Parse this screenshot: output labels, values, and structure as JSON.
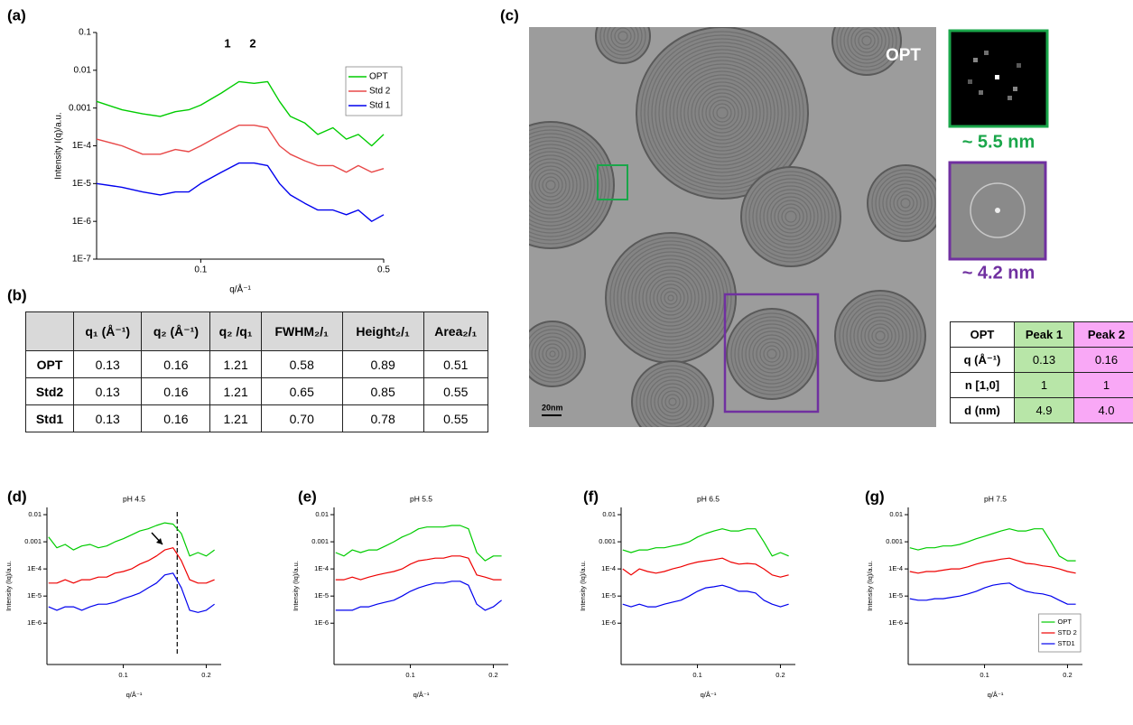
{
  "panel_labels": [
    "(a)",
    "(b)",
    "(c)",
    "(d)",
    "(e)",
    "(f)",
    "(g)"
  ],
  "chart_data": [
    {
      "type": "line",
      "xscale": "log",
      "yscale": "log",
      "xlabel": "q/Å⁻¹",
      "ylabel": "Intensity I(q)/a.u.",
      "xlim": [
        0.04,
        0.5
      ],
      "ylim": [
        1e-07,
        0.1
      ],
      "xticks": [
        0.1,
        0.5
      ],
      "yticks": [
        {
          "value": 1e-07,
          "label": "1E-7"
        },
        {
          "value": 1e-06,
          "label": "1E-6"
        },
        {
          "value": 1e-05,
          "label": "1E-5"
        },
        {
          "value": 0.0001,
          "label": "1E-4"
        },
        0.001,
        0.01,
        0.1
      ],
      "legend": "upper-right",
      "annotations": [
        "1",
        "2"
      ],
      "x": [
        0.04,
        0.05,
        0.06,
        0.07,
        0.08,
        0.09,
        0.1,
        0.12,
        0.14,
        0.16,
        0.18,
        0.2,
        0.22,
        0.25,
        0.28,
        0.32,
        0.36,
        0.4,
        0.45,
        0.5
      ],
      "series": [
        {
          "name": "OPT",
          "color": "#00cc00",
          "values": [
            0.0015,
            0.0009,
            0.0007,
            0.0006,
            0.0008,
            0.0009,
            0.0012,
            0.0025,
            0.005,
            0.0045,
            0.005,
            0.0015,
            0.0006,
            0.0004,
            0.0002,
            0.0003,
            0.00015,
            0.0002,
            0.0001,
            0.0002
          ]
        },
        {
          "name": "Std 2",
          "color": "#e84848",
          "values": [
            0.00015,
            0.0001,
            6e-05,
            6e-05,
            8e-05,
            7e-05,
            0.0001,
            0.0002,
            0.00035,
            0.00035,
            0.0003,
            0.0001,
            6e-05,
            4e-05,
            3e-05,
            3e-05,
            2e-05,
            3e-05,
            2e-05,
            2.5e-05
          ]
        },
        {
          "name": "Std 1",
          "color": "#0000ee",
          "values": [
            1e-05,
            8e-06,
            6e-06,
            5e-06,
            6e-06,
            6e-06,
            1e-05,
            2e-05,
            3.5e-05,
            3.5e-05,
            3e-05,
            1e-05,
            5e-06,
            3e-06,
            2e-06,
            2e-06,
            1.5e-06,
            2e-06,
            1e-06,
            1.5e-06
          ]
        }
      ]
    },
    {
      "type": "line",
      "yscale": "log",
      "title": "pH 4.5",
      "xlabel": "q/Å⁻¹",
      "ylabel": "Intensity (Iq)/a.u.",
      "xlim": [
        0.008,
        0.218
      ],
      "ylim": [
        3e-08,
        0.0185
      ],
      "xticks": [
        0.1,
        0.2
      ],
      "yticks": [
        {
          "value": 1e-06,
          "label": "1E-6"
        },
        {
          "value": 1e-05,
          "label": "1E-5"
        },
        {
          "value": 0.0001,
          "label": "1E-4"
        },
        0.001,
        0.01
      ],
      "reference_line_x": 0.165,
      "x": [
        0.01,
        0.02,
        0.03,
        0.04,
        0.05,
        0.06,
        0.07,
        0.08,
        0.09,
        0.1,
        0.11,
        0.12,
        0.13,
        0.14,
        0.15,
        0.16,
        0.17,
        0.18,
        0.19,
        0.2,
        0.21
      ],
      "series": [
        {
          "color": "#00cc00",
          "values": [
            0.0015,
            0.0006,
            0.0008,
            0.0005,
            0.0007,
            0.0008,
            0.0006,
            0.0007,
            0.001,
            0.0013,
            0.0018,
            0.0025,
            0.003,
            0.004,
            0.005,
            0.0045,
            0.002,
            0.0003,
            0.0004,
            0.0003,
            0.0005
          ]
        },
        {
          "color": "#ee0000",
          "values": [
            3e-05,
            3e-05,
            4e-05,
            3e-05,
            4e-05,
            4e-05,
            5e-05,
            5e-05,
            7e-05,
            8e-05,
            0.0001,
            0.00015,
            0.0002,
            0.0003,
            0.0005,
            0.0006,
            0.0002,
            4e-05,
            3e-05,
            3e-05,
            4e-05
          ]
        },
        {
          "color": "#0000ee",
          "values": [
            4e-06,
            3e-06,
            4e-06,
            4e-06,
            3e-06,
            4e-06,
            5e-06,
            5e-06,
            6e-06,
            8e-06,
            1e-05,
            1.3e-05,
            2e-05,
            3e-05,
            6e-05,
            7e-05,
            2e-05,
            3e-06,
            2.5e-06,
            3e-06,
            5e-06
          ]
        }
      ]
    },
    {
      "type": "line",
      "yscale": "log",
      "title": "pH 5.5",
      "xlabel": "q/Å⁻¹",
      "ylabel": "Intensity (Iq)/a.u.",
      "xlim": [
        0.008,
        0.218
      ],
      "ylim": [
        3e-08,
        0.0185
      ],
      "xticks": [
        0.1,
        0.2
      ],
      "yticks": [
        {
          "value": 1e-06,
          "label": "1E-6"
        },
        {
          "value": 1e-05,
          "label": "1E-5"
        },
        {
          "value": 0.0001,
          "label": "1E-4"
        },
        0.001,
        0.01
      ],
      "x": [
        0.01,
        0.02,
        0.03,
        0.04,
        0.05,
        0.06,
        0.07,
        0.08,
        0.09,
        0.1,
        0.11,
        0.12,
        0.13,
        0.14,
        0.15,
        0.16,
        0.17,
        0.18,
        0.19,
        0.2,
        0.21
      ],
      "series": [
        {
          "color": "#00cc00",
          "values": [
            0.0004,
            0.0003,
            0.0005,
            0.0004,
            0.0005,
            0.0005,
            0.0007,
            0.001,
            0.0015,
            0.002,
            0.003,
            0.0035,
            0.0035,
            0.0035,
            0.004,
            0.004,
            0.003,
            0.0004,
            0.0002,
            0.0003,
            0.0003
          ]
        },
        {
          "color": "#ee0000",
          "values": [
            4e-05,
            4e-05,
            5e-05,
            4e-05,
            5e-05,
            6e-05,
            7e-05,
            8e-05,
            0.0001,
            0.00015,
            0.0002,
            0.00022,
            0.00025,
            0.00025,
            0.0003,
            0.0003,
            0.00025,
            6e-05,
            5e-05,
            4e-05,
            4e-05
          ]
        },
        {
          "color": "#0000ee",
          "values": [
            3e-06,
            3e-06,
            3e-06,
            4e-06,
            4e-06,
            5e-06,
            6e-06,
            7e-06,
            1e-05,
            1.5e-05,
            2e-05,
            2.5e-05,
            3e-05,
            3e-05,
            3.5e-05,
            3.5e-05,
            2.5e-05,
            5e-06,
            3e-06,
            4e-06,
            7e-06
          ]
        }
      ]
    },
    {
      "type": "line",
      "yscale": "log",
      "title": "pH 6.5",
      "xlabel": "q/Å⁻¹",
      "ylabel": "Intensity (Iq)/a.u.",
      "xlim": [
        0.008,
        0.218
      ],
      "ylim": [
        3e-08,
        0.0185
      ],
      "xticks": [
        0.1,
        0.2
      ],
      "yticks": [
        {
          "value": 1e-06,
          "label": "1E-6"
        },
        {
          "value": 1e-05,
          "label": "1E-5"
        },
        {
          "value": 0.0001,
          "label": "1E-4"
        },
        0.001,
        0.01
      ],
      "x": [
        0.01,
        0.02,
        0.03,
        0.04,
        0.05,
        0.06,
        0.07,
        0.08,
        0.09,
        0.1,
        0.11,
        0.12,
        0.13,
        0.14,
        0.15,
        0.16,
        0.17,
        0.18,
        0.19,
        0.2,
        0.21
      ],
      "series": [
        {
          "color": "#00cc00",
          "values": [
            0.0005,
            0.0004,
            0.0005,
            0.0005,
            0.0006,
            0.0006,
            0.0007,
            0.0008,
            0.001,
            0.0015,
            0.002,
            0.0025,
            0.003,
            0.0025,
            0.0025,
            0.003,
            0.003,
            0.001,
            0.0003,
            0.0004,
            0.0003
          ]
        },
        {
          "color": "#ee0000",
          "values": [
            0.0001,
            6e-05,
            0.0001,
            8e-05,
            7e-05,
            8e-05,
            0.0001,
            0.00012,
            0.00015,
            0.00018,
            0.0002,
            0.00022,
            0.00025,
            0.00018,
            0.00015,
            0.00016,
            0.00015,
            0.0001,
            6e-05,
            5e-05,
            6e-05
          ]
        },
        {
          "color": "#0000ee",
          "values": [
            5e-06,
            4e-06,
            5e-06,
            4e-06,
            4e-06,
            5e-06,
            6e-06,
            7e-06,
            1e-05,
            1.5e-05,
            2e-05,
            2.2e-05,
            2.5e-05,
            2e-05,
            1.5e-05,
            1.5e-05,
            1.3e-05,
            7e-06,
            5e-06,
            4e-06,
            5e-06
          ]
        }
      ]
    },
    {
      "type": "line",
      "yscale": "log",
      "title": "pH 7.5",
      "xlabel": "q/Å⁻¹",
      "ylabel": "Intensity (Iq)/a.u.",
      "xlim": [
        0.008,
        0.218
      ],
      "ylim": [
        3e-08,
        0.0185
      ],
      "xticks": [
        0.1,
        0.2
      ],
      "yticks": [
        {
          "value": 1e-06,
          "label": "1E-6"
        },
        {
          "value": 1e-05,
          "label": "1E-5"
        },
        {
          "value": 0.0001,
          "label": "1E-4"
        },
        0.001,
        0.01
      ],
      "legend": "lower-right",
      "x": [
        0.01,
        0.02,
        0.03,
        0.04,
        0.05,
        0.06,
        0.07,
        0.08,
        0.09,
        0.1,
        0.11,
        0.12,
        0.13,
        0.14,
        0.15,
        0.16,
        0.17,
        0.18,
        0.19,
        0.2,
        0.21
      ],
      "series": [
        {
          "name": "OPT",
          "color": "#00cc00",
          "values": [
            0.0006,
            0.0005,
            0.0006,
            0.0006,
            0.0007,
            0.0007,
            0.0008,
            0.001,
            0.0013,
            0.0016,
            0.002,
            0.0025,
            0.003,
            0.0025,
            0.0025,
            0.003,
            0.003,
            0.001,
            0.0003,
            0.0002,
            0.0002
          ]
        },
        {
          "name": "STD 2",
          "color": "#ee0000",
          "values": [
            8e-05,
            7e-05,
            8e-05,
            8e-05,
            9e-05,
            0.0001,
            0.0001,
            0.00012,
            0.00015,
            0.00018,
            0.0002,
            0.00023,
            0.00025,
            0.0002,
            0.00016,
            0.00015,
            0.00013,
            0.00012,
            0.0001,
            8e-05,
            7e-05
          ]
        },
        {
          "name": "STD1",
          "color": "#0000ee",
          "values": [
            8e-06,
            7e-06,
            7e-06,
            8e-06,
            8e-06,
            9e-06,
            1e-05,
            1.2e-05,
            1.5e-05,
            2e-05,
            2.5e-05,
            2.8e-05,
            3e-05,
            2e-05,
            1.5e-05,
            1.3e-05,
            1.2e-05,
            1e-05,
            7e-06,
            5e-06,
            5e-06
          ]
        }
      ]
    }
  ],
  "table_b": {
    "header": [
      "q₁ (Å⁻¹)",
      "q₂ (Å⁻¹)",
      "q₂ /q₁",
      "FWHM₂/₁",
      "Height₂/₁",
      "Area₂/₁"
    ],
    "rows": [
      [
        "OPT",
        "0.13",
        "0.16",
        "1.21",
        "0.58",
        "0.89",
        "0.51"
      ],
      [
        "Std2",
        "0.13",
        "0.16",
        "1.21",
        "0.65",
        "0.85",
        "0.55"
      ],
      [
        "Std1",
        "0.13",
        "0.16",
        "1.21",
        "0.70",
        "0.78",
        "0.55"
      ]
    ]
  },
  "micrograph": {
    "label": "OPT",
    "scale_bar": "20nm",
    "fft_1": "~ 5.5 nm",
    "fft_2": "~ 4.2 nm"
  },
  "table_c": {
    "header": [
      "OPT",
      "Peak 1",
      "Peak 2"
    ],
    "rows": [
      [
        "q (Å⁻¹)",
        "0.13",
        "0.16"
      ],
      [
        "n [1,0]",
        "1",
        "1"
      ],
      [
        "d (nm)",
        "4.9",
        "4.0"
      ]
    ]
  }
}
